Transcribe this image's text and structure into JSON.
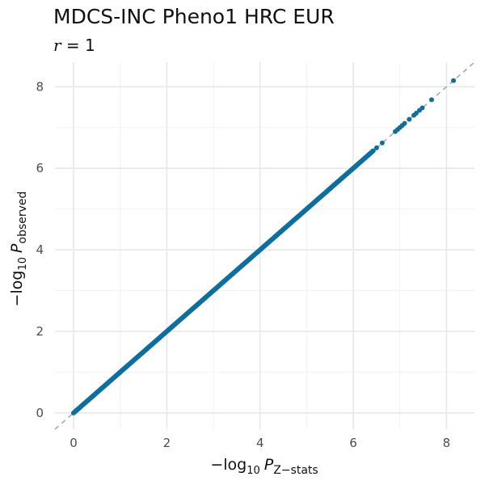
{
  "chart_data": {
    "type": "scatter",
    "title": "MDCS-INC Pheno1 HRC EUR",
    "subtitle_var": "r",
    "subtitle_eq": "= 1",
    "xlabel_prefix": "−log",
    "xlabel_base": "10",
    "xlabel_var": "P",
    "xlabel_sub": "Z−stats",
    "ylabel_prefix": "−log",
    "ylabel_base": "10",
    "ylabel_var": "P",
    "ylabel_sub": "observed",
    "xlim": [
      -0.4,
      8.6
    ],
    "ylim": [
      -0.4,
      8.6
    ],
    "x_ticks": [
      0,
      2,
      4,
      6,
      8
    ],
    "y_ticks": [
      0,
      2,
      4,
      6,
      8
    ],
    "x_tick_labels": [
      "0",
      "2",
      "4",
      "6",
      "8"
    ],
    "y_tick_labels": [
      "0",
      "2",
      "4",
      "6",
      "8"
    ],
    "grid": true,
    "reference_line": {
      "slope": 1,
      "intercept": 0,
      "style": "dashed",
      "color": "#aaaaaa"
    },
    "point_color": "#0e6f9e",
    "dense_range": [
      0,
      6.45
    ],
    "sparse_points": [
      [
        6.5,
        6.5
      ],
      [
        6.62,
        6.62
      ],
      [
        6.9,
        6.9
      ],
      [
        6.95,
        6.95
      ],
      [
        7.0,
        7.0
      ],
      [
        7.05,
        7.05
      ],
      [
        7.1,
        7.1
      ],
      [
        7.2,
        7.2
      ],
      [
        7.3,
        7.3
      ],
      [
        7.35,
        7.35
      ],
      [
        7.42,
        7.42
      ],
      [
        7.48,
        7.48
      ],
      [
        7.68,
        7.68
      ],
      [
        8.15,
        8.15
      ]
    ]
  }
}
